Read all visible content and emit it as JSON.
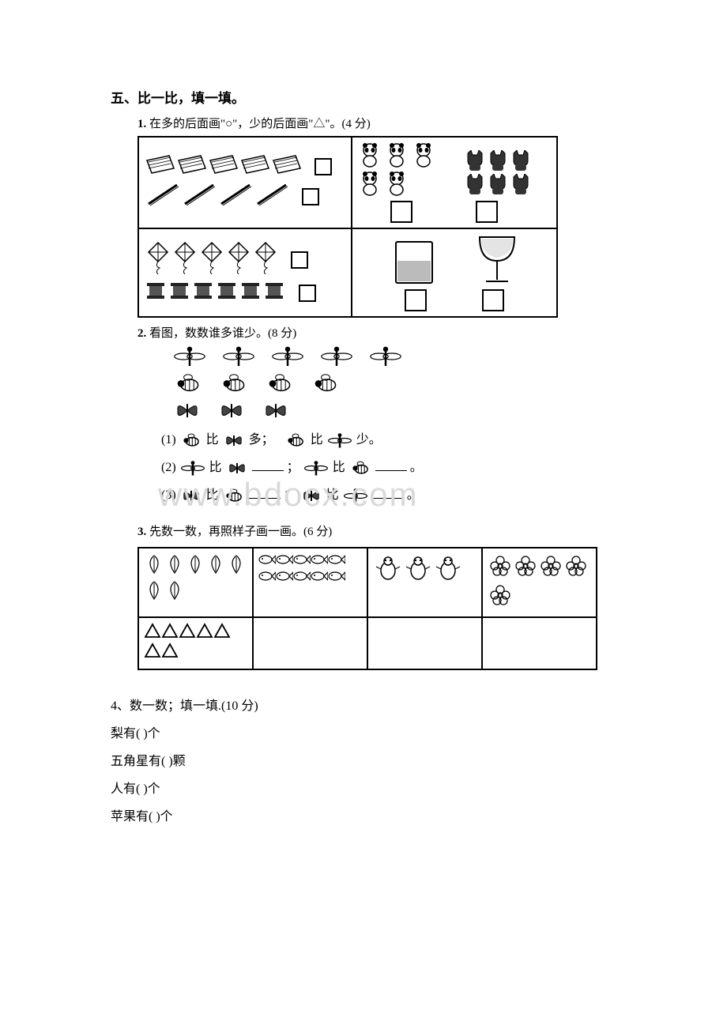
{
  "section": {
    "num": "五",
    "title": "、比一比，填一填。"
  },
  "q1": {
    "num": "1.",
    "text": "在多的后面画\"○\"，少的后面画\"△\"。(4 分)",
    "cells": {
      "tl_top_count": 5,
      "tl_bot_count": 4,
      "tr_left_count": 5,
      "tr_right_count": 6,
      "bl_top_count": 5,
      "bl_bot_count": 6
    }
  },
  "q2": {
    "num": "2.",
    "text": "看图，数数谁多谁少。(8 分)",
    "row1_count": 5,
    "row2_count": 4,
    "row3_count": 3,
    "line1_a": "(1)",
    "line1_txt_a": "比",
    "line1_end_a": "多；",
    "line1_txt_b": "比",
    "line1_end_b": "少。",
    "line2_a": "(2)",
    "line2_txt": "比",
    "line2_sep": "；",
    "line2_end": "。",
    "line3_a": "(3)",
    "line3_txt": "比",
    "line3_sep": "；",
    "line3_end": "。"
  },
  "q3": {
    "num": "3.",
    "text": "先数一数，再照样子画一画。(6 分)",
    "example_triangles_row1": 5,
    "example_triangles_row2": 2,
    "col1_count": 7,
    "col2_count": 10,
    "col3_count": 3,
    "col4_count": 5
  },
  "q4": {
    "num": "4、",
    "text": "数一数；填一填.(10 分)",
    "lines": [
      "梨有(  )个",
      "五角星有(  )颗",
      "人有(  )个",
      "苹果有(  )个"
    ]
  },
  "watermark": "www.bdocx.com",
  "colors": {
    "text": "#000000",
    "bg": "#ffffff",
    "border": "#000000",
    "watermark": "#d9d9d9"
  }
}
